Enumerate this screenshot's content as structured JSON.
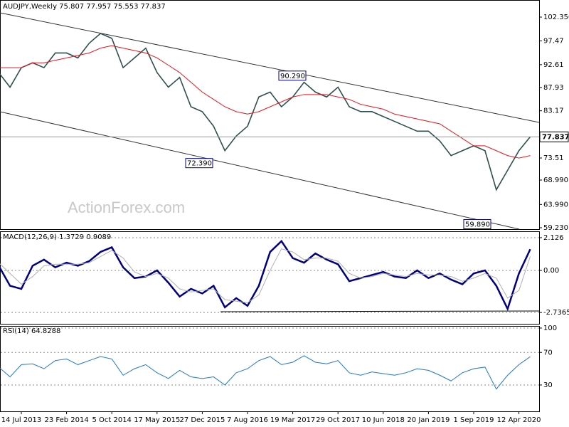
{
  "chart_data": [
    {
      "type": "line",
      "title": "AUDJPY,Weekly  75.807 77.957 75.553 77.837",
      "watermark": "ActionForex.com",
      "ylim": [
        58.94,
        105.85
      ],
      "yticks": [
        {
          "value": 102.35,
          "label": "102.350"
        },
        97.47,
        92.61,
        87.93,
        83.17,
        73.51,
        {
          "value": 68.99,
          "label": "68.990"
        },
        {
          "value": 63.99,
          "label": "63.990"
        },
        {
          "value": 59.23,
          "label": "59.230"
        }
      ],
      "last_price": 77.837,
      "annotations": [
        {
          "value": 90.29,
          "label": "90.290"
        },
        {
          "value": 72.39,
          "label": "72.390"
        },
        {
          "value": 59.89,
          "label": "59.890"
        }
      ],
      "series": [
        {
          "color": "#2f4f4f",
          "values": [
            91,
            88,
            92,
            93,
            92,
            95,
            95,
            94,
            97,
            99,
            98,
            92,
            94,
            96,
            91,
            88,
            90,
            84,
            83,
            80,
            75,
            78,
            80,
            86,
            87,
            84,
            86,
            89,
            87,
            86,
            88,
            84,
            83,
            83,
            82,
            81,
            80,
            79,
            79,
            77,
            74,
            75,
            76,
            75,
            67,
            71,
            75,
            77.837
          ]
        },
        {
          "color": "#e8141e",
          "values": [
            92,
            92,
            92,
            93,
            93,
            93.5,
            94,
            94.5,
            95,
            96,
            96.5,
            96,
            95.5,
            95,
            94,
            92.5,
            91,
            89,
            87,
            85.5,
            84,
            83,
            82.5,
            83,
            84,
            85,
            86,
            86.5,
            86.5,
            86.5,
            86,
            85.5,
            84.5,
            84,
            83.5,
            82.5,
            82,
            81.5,
            81,
            80.5,
            79,
            77.5,
            76,
            76,
            75,
            74,
            73.5,
            74
          ]
        }
      ]
    },
    {
      "type": "line",
      "title": "MACD(12,26,9) 1.3729 0.9089",
      "ylim": [
        -3.47,
        2.54
      ],
      "yticks": [
        2.126,
        {
          "value": 0,
          "label": "0.00"
        },
        -2.7365
      ],
      "series": [
        {
          "color": "#000080",
          "values": [
            0.3,
            -1.0,
            -1.2,
            0.3,
            0.7,
            0.2,
            0.5,
            0.3,
            0.6,
            1.2,
            1.5,
            0.2,
            -0.5,
            -0.4,
            0.0,
            -0.8,
            -1.7,
            -1.2,
            -1.5,
            -1.0,
            -2.4,
            -1.8,
            -2.3,
            -1.0,
            1.2,
            1.9,
            0.8,
            0.5,
            1.1,
            0.7,
            0.4,
            -0.7,
            -0.5,
            -0.3,
            -0.1,
            -0.4,
            -0.5,
            0.0,
            -0.5,
            -0.2,
            -0.6,
            -0.9,
            -0.2,
            0.0,
            -1.0,
            -2.5,
            -0.2,
            1.3729
          ]
        },
        {
          "color": "#b0b0b0",
          "values": [
            0.5,
            -0.2,
            -0.9,
            -0.4,
            0.3,
            0.4,
            0.4,
            0.4,
            0.5,
            0.9,
            1.3,
            0.8,
            -0.1,
            -0.4,
            -0.2,
            -0.5,
            -1.2,
            -1.4,
            -1.3,
            -1.2,
            -1.9,
            -2.0,
            -2.1,
            -1.6,
            0.0,
            1.4,
            1.2,
            0.7,
            0.8,
            0.8,
            0.6,
            -0.2,
            -0.5,
            -0.4,
            -0.2,
            -0.3,
            -0.4,
            -0.2,
            -0.3,
            -0.3,
            -0.4,
            -0.7,
            -0.5,
            -0.2,
            -0.5,
            -1.8,
            -1.3,
            0.9089
          ]
        }
      ]
    },
    {
      "type": "line",
      "title": "RSI(14) 64.8288",
      "ylim": [
        -2.4,
        102.6
      ],
      "yticks": [
        100,
        70,
        30
      ],
      "categories": [
        null,
        null,
        "14 Jul 2013",
        null,
        null,
        null,
        "23 Feb 2014",
        null,
        null,
        null,
        "5 Oct 2014",
        null,
        null,
        null,
        "17 May 2015",
        null,
        null,
        null,
        "27 Dec 2015",
        null,
        null,
        null,
        "7 Aug 2016",
        null,
        null,
        null,
        "19 Mar 2017",
        null,
        null,
        null,
        "29 Oct 2017",
        null,
        null,
        null,
        "10 Jun 2018",
        null,
        null,
        null,
        "20 Jan 2019",
        null,
        null,
        null,
        "1 Sep 2019",
        null,
        null,
        null,
        "12 Apr 2020",
        null
      ],
      "series": [
        {
          "color": "#1e78c8",
          "values": [
            52,
            40,
            55,
            56,
            50,
            60,
            62,
            55,
            60,
            65,
            62,
            42,
            50,
            55,
            45,
            38,
            48,
            40,
            38,
            40,
            30,
            45,
            50,
            60,
            65,
            55,
            58,
            66,
            58,
            56,
            60,
            45,
            42,
            46,
            44,
            42,
            45,
            50,
            48,
            42,
            35,
            45,
            50,
            52,
            25,
            42,
            55,
            64.8288
          ]
        }
      ]
    }
  ]
}
